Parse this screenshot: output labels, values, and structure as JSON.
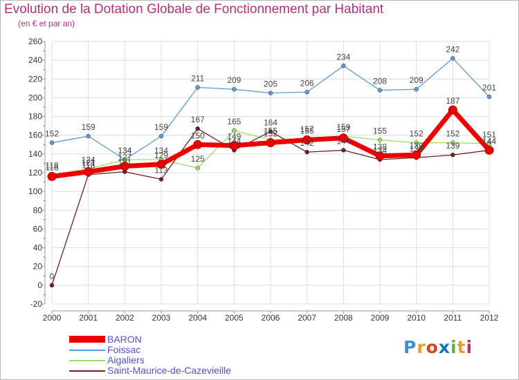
{
  "header": {
    "title": "Evolution de la Dotation Globale de Fonctionnement par Habitant",
    "subtitle": "(en € et par an)"
  },
  "chart_data": {
    "type": "line",
    "title": "Evolution de la Dotation Globale de Fonctionnement par Habitant",
    "subtitle": "(en € et par an)",
    "xlabel": "",
    "ylabel": "",
    "categories": [
      "2000",
      "2001",
      "2002",
      "2003",
      "2004",
      "2005",
      "2006",
      "2007",
      "2008",
      "2009",
      "2010",
      "2011",
      "2012"
    ],
    "ylim": [
      -20,
      260
    ],
    "yticks": [
      -20,
      0,
      20,
      40,
      60,
      80,
      100,
      120,
      140,
      160,
      180,
      200,
      220,
      240,
      260
    ],
    "grid": true,
    "legend_position": "bottom-left",
    "series": [
      {
        "name": "BARON",
        "color": "#ee0000",
        "highlight": true,
        "values": [
          116,
          121,
          127,
          129,
          150,
          149,
          152,
          155,
          157,
          138,
          139,
          187,
          144
        ],
        "labels": [
          "116",
          "121",
          "127",
          "129",
          "150",
          "149",
          "152",
          "155",
          "157",
          "138",
          "139",
          "187",
          "144"
        ]
      },
      {
        "name": "Foissac",
        "color": "#5b9bd5",
        "values": [
          152,
          159,
          134,
          159,
          211,
          209,
          205,
          206,
          234,
          208,
          209,
          242,
          201
        ],
        "labels": [
          "152",
          "159",
          "134",
          "159",
          "211",
          "209",
          "205",
          "206",
          "234",
          "208",
          "209",
          "242",
          "201"
        ]
      },
      {
        "name": "Aigaliers",
        "color": "#99dd66",
        "values": [
          118,
          124,
          134,
          134,
          125,
          165,
          155,
          157,
          159,
          155,
          152,
          152,
          151
        ],
        "labels": [
          "118",
          "124",
          "134",
          "134",
          "125",
          "165",
          "155",
          "157",
          "159",
          "155",
          "152",
          "152",
          "151"
        ]
      },
      {
        "name": "Saint-Maurice-de-Cazevieille",
        "color": "#6b2020",
        "values": [
          0,
          118,
          121,
          113,
          167,
          144,
          164,
          142,
          144,
          134,
          136,
          139,
          144
        ],
        "labels": [
          "0",
          "118",
          "121",
          "113",
          "167",
          "144",
          "164",
          "142",
          "144",
          "134",
          "136",
          "139",
          "144"
        ]
      }
    ]
  },
  "legend": {
    "items": [
      {
        "label": "BARON",
        "color": "#ee0000"
      },
      {
        "label": "Foissac",
        "color": "#5b9bd5"
      },
      {
        "label": "Aigaliers",
        "color": "#99dd66"
      },
      {
        "label": "Saint-Maurice-de-Cazevieille",
        "color": "#6b2020"
      }
    ]
  },
  "logo": {
    "text": "Proxiti",
    "letters": [
      "P",
      "r",
      "o",
      "x",
      "i",
      "t",
      "i"
    ],
    "colors": [
      "#3a8fd8",
      "#e8a020",
      "#e04020",
      "#1a70c0",
      "#60b040",
      "#e8a020",
      "#c03070"
    ]
  }
}
